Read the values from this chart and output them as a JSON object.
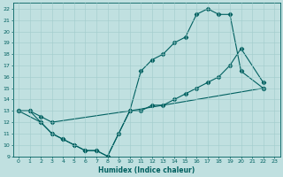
{
  "xlabel": "Humidex (Indice chaleur)",
  "xlim": [
    -0.5,
    23.5
  ],
  "ylim": [
    9,
    22.5
  ],
  "yticks": [
    9,
    10,
    11,
    12,
    13,
    14,
    15,
    16,
    17,
    18,
    19,
    20,
    21,
    22
  ],
  "xticks": [
    0,
    1,
    2,
    3,
    4,
    5,
    6,
    7,
    8,
    9,
    10,
    11,
    12,
    13,
    14,
    15,
    16,
    17,
    18,
    19,
    20,
    21,
    22,
    23
  ],
  "bg_color": "#c0e0e0",
  "line_color": "#006060",
  "grid_color": "#a0cccc",
  "line1_x": [
    0,
    1,
    2,
    3,
    4,
    5,
    6,
    7,
    8,
    9,
    10,
    11,
    12,
    13,
    14,
    15,
    16,
    17,
    18,
    19,
    20,
    22
  ],
  "line1_y": [
    13,
    13,
    12,
    11,
    10.5,
    10,
    9.5,
    9.5,
    9,
    11,
    13,
    16.5,
    17.5,
    18,
    19,
    19.5,
    21.5,
    22,
    21.5,
    21.5,
    16.5,
    15
  ],
  "line2_x": [
    0,
    1,
    2,
    3,
    10,
    11,
    12,
    13,
    14,
    15,
    16,
    17,
    18,
    19,
    20,
    22
  ],
  "line2_y": [
    13,
    13,
    12.5,
    12,
    13,
    13,
    13.5,
    13.5,
    14,
    14.5,
    15,
    15.5,
    16,
    17,
    18.5,
    15.5
  ],
  "line3_x": [
    0,
    2,
    3,
    4,
    5,
    6,
    7,
    8,
    9,
    10,
    22
  ],
  "line3_y": [
    13,
    12,
    11,
    10.5,
    10,
    9.5,
    9.5,
    9,
    11,
    13,
    15
  ]
}
